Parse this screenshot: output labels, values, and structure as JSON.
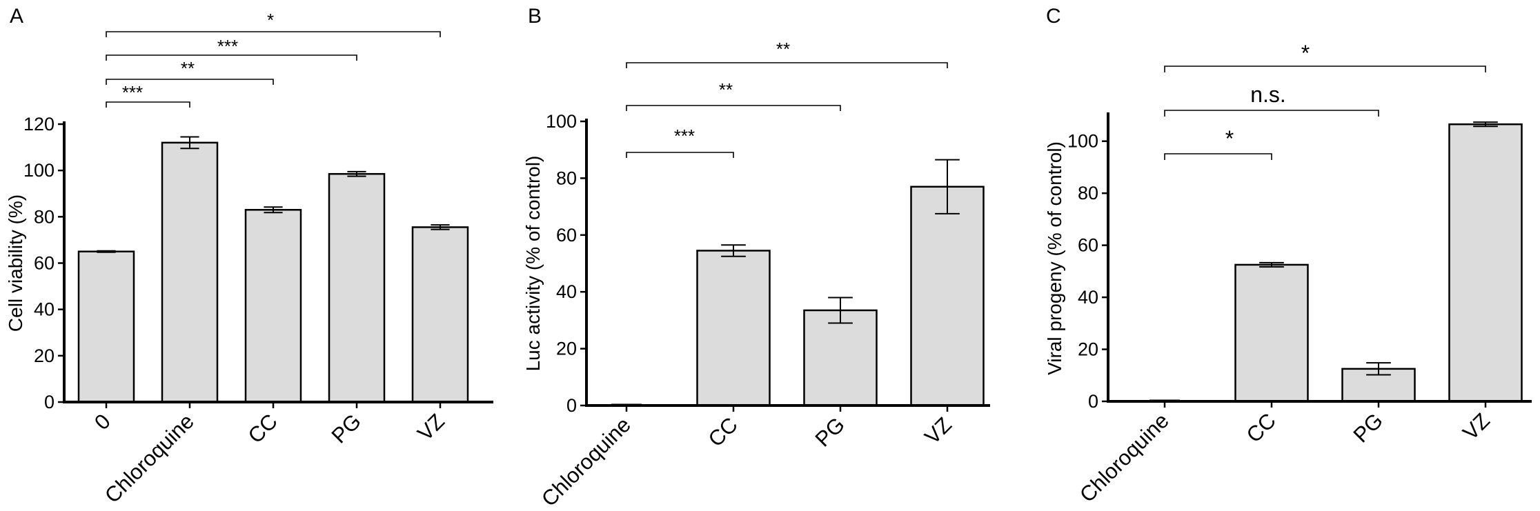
{
  "chart_data": [
    {
      "panel": "A",
      "type": "bar",
      "ylabel": "Cell viability (%)",
      "ylim": [
        0,
        120
      ],
      "yticks": [
        0,
        20,
        40,
        60,
        80,
        100,
        120
      ],
      "categories": [
        "0",
        "Chloroquine",
        "CC",
        "PG",
        "VZ"
      ],
      "values": [
        65,
        112,
        83,
        98.5,
        75.5
      ],
      "errors": [
        0.3,
        2.5,
        1.2,
        1.0,
        1.0
      ],
      "bar_color": "#dcdcdc",
      "significance": [
        {
          "from": "0",
          "to": "Chloroquine",
          "label": "***"
        },
        {
          "from": "0",
          "to": "CC",
          "label": "**"
        },
        {
          "from": "0",
          "to": "PG",
          "label": "***"
        },
        {
          "from": "0",
          "to": "VZ",
          "label": "*"
        }
      ]
    },
    {
      "panel": "B",
      "type": "bar",
      "ylabel": "Luc activity (% of control)",
      "ylim": [
        0,
        100
      ],
      "yticks": [
        0,
        20,
        40,
        60,
        80,
        100
      ],
      "categories": [
        "Chloroquine",
        "CC",
        "PG",
        "VZ"
      ],
      "values": [
        0,
        54.5,
        33.5,
        77
      ],
      "errors": [
        0,
        2,
        4.5,
        9.5
      ],
      "bar_color": "#dcdcdc",
      "significance": [
        {
          "from": "Chloroquine",
          "to": "CC",
          "label": "***"
        },
        {
          "from": "Chloroquine",
          "to": "PG",
          "label": "**"
        },
        {
          "from": "Chloroquine",
          "to": "VZ",
          "label": "**"
        }
      ]
    },
    {
      "panel": "C",
      "type": "bar",
      "ylabel": "Viral progeny (% of control)",
      "ylim": [
        0,
        110
      ],
      "yticks": [
        0,
        20,
        40,
        60,
        80,
        100
      ],
      "categories": [
        "Chloroquine",
        "CC",
        "PG",
        "VZ"
      ],
      "values": [
        0,
        52.5,
        12.5,
        106.5
      ],
      "errors": [
        0,
        0.8,
        2.3,
        0.8
      ],
      "bar_color": "#dcdcdc",
      "significance": [
        {
          "from": "Chloroquine",
          "to": "CC",
          "label": "*"
        },
        {
          "from": "Chloroquine",
          "to": "PG",
          "label": "n.s."
        },
        {
          "from": "Chloroquine",
          "to": "VZ",
          "label": "*"
        }
      ]
    }
  ]
}
